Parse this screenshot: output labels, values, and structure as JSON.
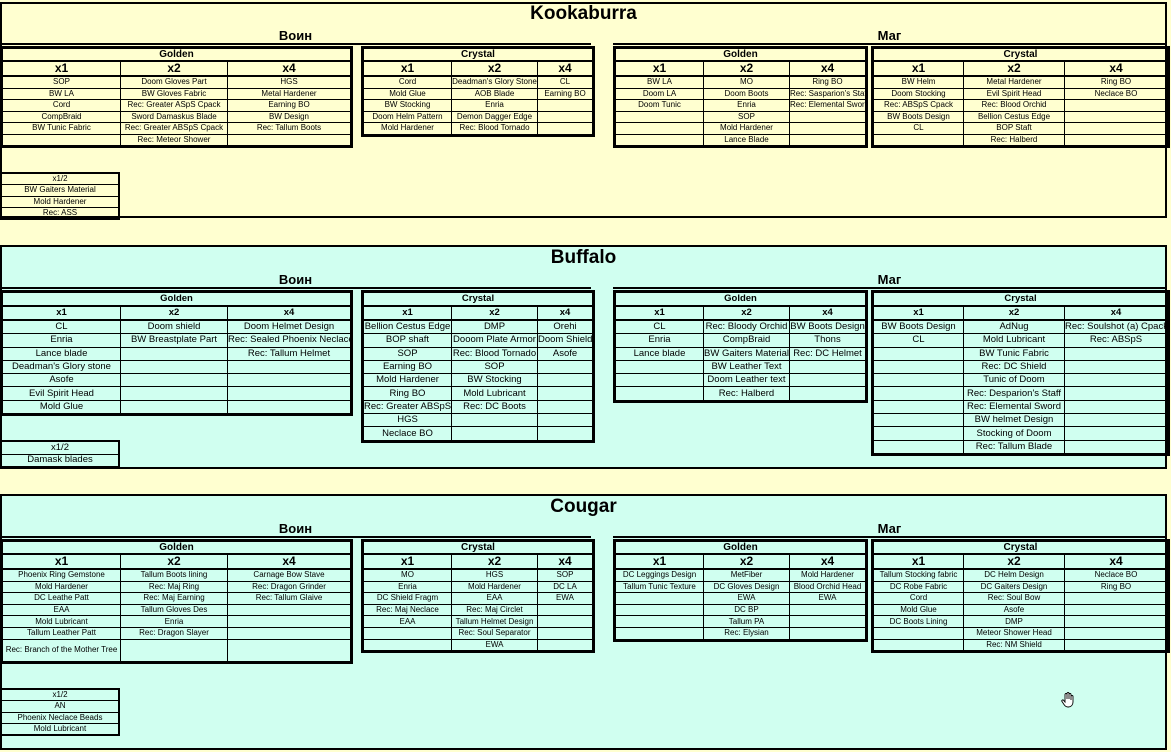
{
  "sections": [
    {
      "title": "Kookaburra",
      "bg": "#ffffd0",
      "classes": [
        {
          "name": "Воин",
          "golden": {
            "label": "Golden",
            "headers": [
              "x1",
              "x2",
              "x4"
            ],
            "rows": [
              [
                "SOP",
                "Doom Gloves Part",
                "HGS"
              ],
              [
                "BW LA",
                "BW Gloves Fabric",
                "Metal Hardener"
              ],
              [
                "Cord",
                "Rec: Greater ASpS Cpack",
                "Earning BO"
              ],
              [
                "CompBraid",
                "Sword Damaskus Blade",
                "BW Design"
              ],
              [
                "BW Tunic Fabric",
                "Rec: Greater ABSpS Cpack",
                "Rec: Tallum Boots"
              ],
              [
                "",
                "Rec: Meteor Shower",
                ""
              ]
            ]
          },
          "crystal": {
            "label": "Crystal",
            "headers": [
              "x1",
              "x2",
              "x4"
            ],
            "rows": [
              [
                "Cord",
                "Deadman's Glory Stone",
                "CL"
              ],
              [
                "Mold Glue",
                "AOB Blade",
                "Earning BO"
              ],
              [
                "BW Stocking",
                "Enria",
                ""
              ],
              [
                "Doom Helm Pattern",
                "Demon Dagger Edge",
                ""
              ],
              [
                "Mold Hardener",
                "Rec: Blood Tornado",
                ""
              ]
            ]
          }
        },
        {
          "name": "Маг",
          "golden": {
            "label": "Golden",
            "headers": [
              "x1",
              "x2",
              "x4"
            ],
            "rows": [
              [
                "BW LA",
                "MO",
                "Ring BO"
              ],
              [
                "Doom LA",
                "Doom Boots",
                "Rec: Sasparion's Staff"
              ],
              [
                "Doom Tunic",
                "Enria",
                "Rec: Elemental Sword"
              ],
              [
                "",
                "SOP",
                ""
              ],
              [
                "",
                "Mold Hardener",
                ""
              ],
              [
                "",
                "Lance Blade",
                ""
              ]
            ]
          },
          "crystal": {
            "label": "Crystal",
            "headers": [
              "x1",
              "x2",
              "x4"
            ],
            "rows": [
              [
                "BW Helm",
                "Metal Hardener",
                "Ring BO"
              ],
              [
                "Doom Stocking",
                "Evil Spirit Head",
                "Neclace BO"
              ],
              [
                "Rec: ABSpS Cpack",
                "Rec: Blood Orchid",
                ""
              ],
              [
                "BW Boots Design",
                "Bellion Cestus Edge",
                ""
              ],
              [
                "CL",
                "BOP Staft",
                ""
              ],
              [
                "",
                "Rec: Halberd",
                ""
              ]
            ]
          }
        }
      ],
      "half": {
        "label": "x1/2",
        "rows": [
          "BW Gaiters Material",
          "Mold Hardener",
          "Rec: ASS"
        ]
      }
    },
    {
      "title": "Buffalo",
      "bg": "#d0fff0",
      "classes": [
        {
          "name": "Воин",
          "golden": {
            "label": "Golden",
            "headers": [
              "x1",
              "x2",
              "x4"
            ],
            "rows": [
              [
                "CL",
                "Doom shield",
                "Doom Helmet Design"
              ],
              [
                "Enria",
                "BW Breastplate Part",
                "Rec: Sealed Phoenix Neclace"
              ],
              [
                "Lance blade",
                "",
                "Rec: Tallum Helmet"
              ],
              [
                "Deadman's Glory stone",
                "",
                ""
              ],
              [
                "Asofe",
                "",
                ""
              ],
              [
                "Evil Spirit Head",
                "",
                ""
              ],
              [
                "Mold Glue",
                "",
                ""
              ]
            ]
          },
          "crystal": {
            "label": "Crystal",
            "headers": [
              "x1",
              "x2",
              "x4"
            ],
            "rows": [
              [
                "Bellion Cestus Edge",
                "DMP",
                "Orehi"
              ],
              [
                "BOP shaft",
                "Dooom Plate Armor",
                "Doom Shield"
              ],
              [
                "SOP",
                "Rec: Blood Tornado",
                "Asofe"
              ],
              [
                "Earning BO",
                "SOP",
                ""
              ],
              [
                "Mold Hardener",
                "BW Stocking",
                ""
              ],
              [
                "Ring BO",
                "Mold Lubricant",
                ""
              ],
              [
                "Rec: Greater ABSpS",
                "Rec: DC Boots",
                ""
              ],
              [
                "HGS",
                "",
                ""
              ],
              [
                "Neclace BO",
                "",
                ""
              ]
            ]
          }
        },
        {
          "name": "Маг",
          "golden": {
            "label": "Golden",
            "headers": [
              "x1",
              "x2",
              "x4"
            ],
            "rows": [
              [
                "CL",
                "Rec: Bloody Orchid",
                "BW Boots Design"
              ],
              [
                "Enria",
                "CompBraid",
                "Thons"
              ],
              [
                "Lance blade",
                "BW Gaiters Material",
                "Rec: DC Helmet"
              ],
              [
                "",
                "BW Leather Text",
                ""
              ],
              [
                "",
                "Doom Leather text",
                ""
              ],
              [
                "",
                "Rec: Halberd",
                ""
              ]
            ]
          },
          "crystal": {
            "label": "Crystal",
            "headers": [
              "x1",
              "x2",
              "x4"
            ],
            "rows": [
              [
                "BW Boots Design",
                "AdNug",
                "Rec: Soulshot (a) Cpack"
              ],
              [
                "CL",
                "Mold Lubricant",
                "Rec: ABSpS"
              ],
              [
                "",
                "BW Tunic Fabric",
                ""
              ],
              [
                "",
                "Rec: DC Shield",
                ""
              ],
              [
                "",
                "Tunic of Doom",
                ""
              ],
              [
                "",
                "Rec: Desparion's Staff",
                ""
              ],
              [
                "",
                "Rec: Elemental Sword",
                ""
              ],
              [
                "",
                "BW helmet Design",
                ""
              ],
              [
                "",
                "Stocking of Doom",
                ""
              ],
              [
                "",
                "Rec: Tallum Blade",
                ""
              ]
            ]
          }
        }
      ],
      "half": {
        "label": "x1/2",
        "rows": [
          "Damask blades"
        ]
      }
    },
    {
      "title": "Cougar",
      "bg": "#d0fff0",
      "classes": [
        {
          "name": "Воин",
          "golden": {
            "label": "Golden",
            "headers": [
              "x1",
              "x2",
              "x4"
            ],
            "rows": [
              [
                "Phoenix Ring Gemstone",
                "Tallum Boots lining",
                "Carnage Bow Stave"
              ],
              [
                "Mold Hardener",
                "Rec: Maj Ring",
                "Rec: Dragon Grinder"
              ],
              [
                "DC Leathe Patt",
                "Rec: Maj Earning",
                "Rec: Tallum Glaive"
              ],
              [
                "EAA",
                "Tallum Gloves Des",
                ""
              ],
              [
                "Mold Lubricant",
                "Enria",
                ""
              ],
              [
                "Tallum Leather Patt",
                "Rec: Dragon Slayer",
                ""
              ],
              [
                "Rec: Branch of the Mother Tree",
                "",
                ""
              ]
            ]
          },
          "crystal": {
            "label": "Crystal",
            "headers": [
              "x1",
              "x2",
              "x4"
            ],
            "rows": [
              [
                "MO",
                "HGS",
                "SOP"
              ],
              [
                "Enria",
                "Mold Hardener",
                "DC LA"
              ],
              [
                "DC Shield Fragm",
                "EAA",
                "EWA"
              ],
              [
                "Rec: Maj Neclace",
                "Rec: Maj Circlet",
                ""
              ],
              [
                "EAA",
                "Tallum Helmet Design",
                ""
              ],
              [
                "",
                "Rec: Soul Separator",
                ""
              ],
              [
                "",
                "EWA",
                ""
              ]
            ]
          }
        },
        {
          "name": "Маг",
          "golden": {
            "label": "Golden",
            "headers": [
              "x1",
              "x2",
              "x4"
            ],
            "rows": [
              [
                "DC Leggings Design",
                "MetFiber",
                "Mold Hardener"
              ],
              [
                "Tallum Tunic Texture",
                "DC Gloves Design",
                "Blood Orchid Head"
              ],
              [
                "",
                "EWA",
                "EWA"
              ],
              [
                "",
                "DC BP",
                ""
              ],
              [
                "",
                "Tallum PA",
                ""
              ],
              [
                "",
                "Rec: Elysian",
                ""
              ]
            ]
          },
          "crystal": {
            "label": "Crystal",
            "headers": [
              "x1",
              "x2",
              "x4"
            ],
            "rows": [
              [
                "Tallum Stocking fabric",
                "DC Helm Design",
                "Neclace BO"
              ],
              [
                "DC Robe Fabric",
                "DC Gaiters Design",
                "Ring BO"
              ],
              [
                "Cord",
                "Rec: Soul Bow",
                ""
              ],
              [
                "Mold Glue",
                "Asofe",
                ""
              ],
              [
                "DC Boots Lining",
                "DMP",
                ""
              ],
              [
                "",
                "Meteor Shower Head",
                ""
              ],
              [
                "",
                "Rec: NM Shield",
                ""
              ]
            ]
          }
        }
      ],
      "half": {
        "label": "x1/2",
        "rows": [
          "AN",
          "Phoenix Neclace Beads",
          "Mold Lubricant"
        ]
      }
    }
  ],
  "cursor_icon": "hand-cursor-icon"
}
